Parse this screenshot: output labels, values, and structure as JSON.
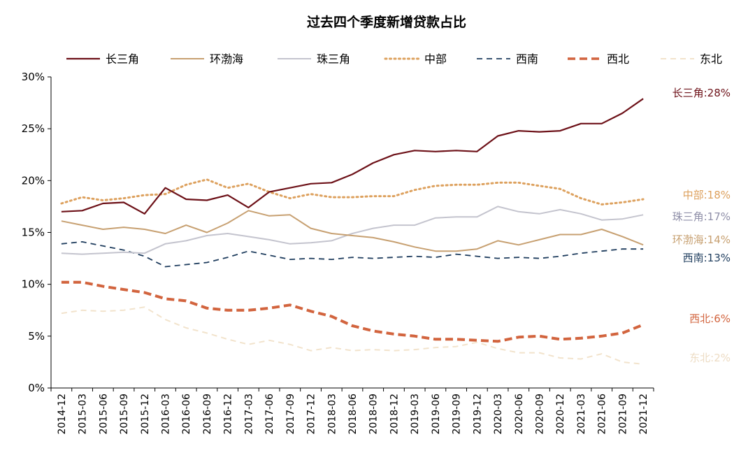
{
  "chart_data": {
    "type": "line",
    "title": "过去四个季度新增贷款占比",
    "x": [
      "2014-12",
      "2015-03",
      "2015-06",
      "2015-09",
      "2015-12",
      "2016-03",
      "2016-06",
      "2016-09",
      "2016-12",
      "2017-03",
      "2017-06",
      "2017-09",
      "2017-12",
      "2018-03",
      "2018-06",
      "2018-09",
      "2018-12",
      "2019-03",
      "2019-06",
      "2019-09",
      "2019-12",
      "2020-03",
      "2020-06",
      "2020-09",
      "2020-12",
      "2021-03",
      "2021-06",
      "2021-09",
      "2021-12"
    ],
    "yticks": [
      "0%",
      "5%",
      "10%",
      "15%",
      "20%",
      "25%",
      "30%"
    ],
    "ylim": [
      0,
      30
    ],
    "legend_position": "top",
    "series": [
      {
        "name": "长三角",
        "color": "#6d1118",
        "style": "solid",
        "width": 2.2,
        "end_label": "长三角:28%",
        "values": [
          17.0,
          17.1,
          17.8,
          17.9,
          16.8,
          19.3,
          18.2,
          18.1,
          18.6,
          17.4,
          18.9,
          19.3,
          19.7,
          19.8,
          20.6,
          21.7,
          22.5,
          22.9,
          22.8,
          22.9,
          22.8,
          24.3,
          24.8,
          24.7,
          24.8,
          25.5,
          25.5,
          26.5,
          27.9
        ]
      },
      {
        "name": "环渤海",
        "color": "#c7a071",
        "style": "solid",
        "width": 2,
        "end_label": "环渤海:14%",
        "values": [
          16.1,
          15.7,
          15.3,
          15.5,
          15.3,
          14.9,
          15.7,
          15.0,
          15.9,
          17.1,
          16.6,
          16.7,
          15.4,
          14.9,
          14.7,
          14.5,
          14.1,
          13.6,
          13.2,
          13.2,
          13.4,
          14.2,
          13.8,
          14.3,
          14.8,
          14.8,
          15.3,
          14.6,
          13.8
        ]
      },
      {
        "name": "珠三角",
        "color": "#c4c4ce",
        "style": "solid",
        "width": 2,
        "end_label": "珠三角:17%",
        "values": [
          13.0,
          12.9,
          13.0,
          13.1,
          13.0,
          13.9,
          14.2,
          14.7,
          14.9,
          14.6,
          14.3,
          13.9,
          14.0,
          14.2,
          14.9,
          15.4,
          15.7,
          15.7,
          16.4,
          16.5,
          16.5,
          17.5,
          17.0,
          16.8,
          17.2,
          16.8,
          16.2,
          16.3,
          16.7
        ]
      },
      {
        "name": "中部",
        "color": "#dda15e",
        "style": "dotted",
        "width": 3,
        "end_label": "中部:18%",
        "values": [
          17.8,
          18.4,
          18.1,
          18.3,
          18.6,
          18.7,
          19.6,
          20.1,
          19.3,
          19.7,
          18.9,
          18.3,
          18.7,
          18.4,
          18.4,
          18.5,
          18.5,
          19.1,
          19.5,
          19.6,
          19.6,
          19.8,
          19.8,
          19.5,
          19.2,
          18.3,
          17.7,
          17.9,
          18.2
        ]
      },
      {
        "name": "西南",
        "color": "#1f3d5e",
        "style": "dashed",
        "width": 1.8,
        "end_label": "西南:13%",
        "values": [
          13.9,
          14.1,
          13.7,
          13.3,
          12.7,
          11.7,
          11.9,
          12.1,
          12.6,
          13.2,
          12.8,
          12.4,
          12.5,
          12.4,
          12.6,
          12.5,
          12.6,
          12.7,
          12.6,
          12.9,
          12.7,
          12.5,
          12.6,
          12.5,
          12.7,
          13.0,
          13.2,
          13.4,
          13.4
        ]
      },
      {
        "name": "西北",
        "color": "#d2643e",
        "style": "dashed-thick",
        "width": 4,
        "end_label": "西北:6%",
        "values": [
          10.2,
          10.2,
          9.8,
          9.5,
          9.2,
          8.6,
          8.4,
          7.7,
          7.5,
          7.5,
          7.7,
          8.0,
          7.4,
          6.9,
          6.0,
          5.5,
          5.2,
          5.0,
          4.7,
          4.7,
          4.6,
          4.5,
          4.9,
          5.0,
          4.7,
          4.8,
          5.0,
          5.3,
          6.1
        ]
      },
      {
        "name": "东北",
        "color": "#f2e3cc",
        "style": "dashed",
        "width": 2,
        "end_label": "东北:2%",
        "values": [
          7.2,
          7.5,
          7.4,
          7.5,
          7.8,
          6.6,
          5.8,
          5.3,
          4.7,
          4.2,
          4.6,
          4.2,
          3.6,
          3.9,
          3.6,
          3.7,
          3.6,
          3.7,
          3.9,
          4.0,
          4.4,
          3.8,
          3.4,
          3.4,
          2.9,
          2.8,
          3.3,
          2.5,
          2.3
        ]
      }
    ]
  }
}
